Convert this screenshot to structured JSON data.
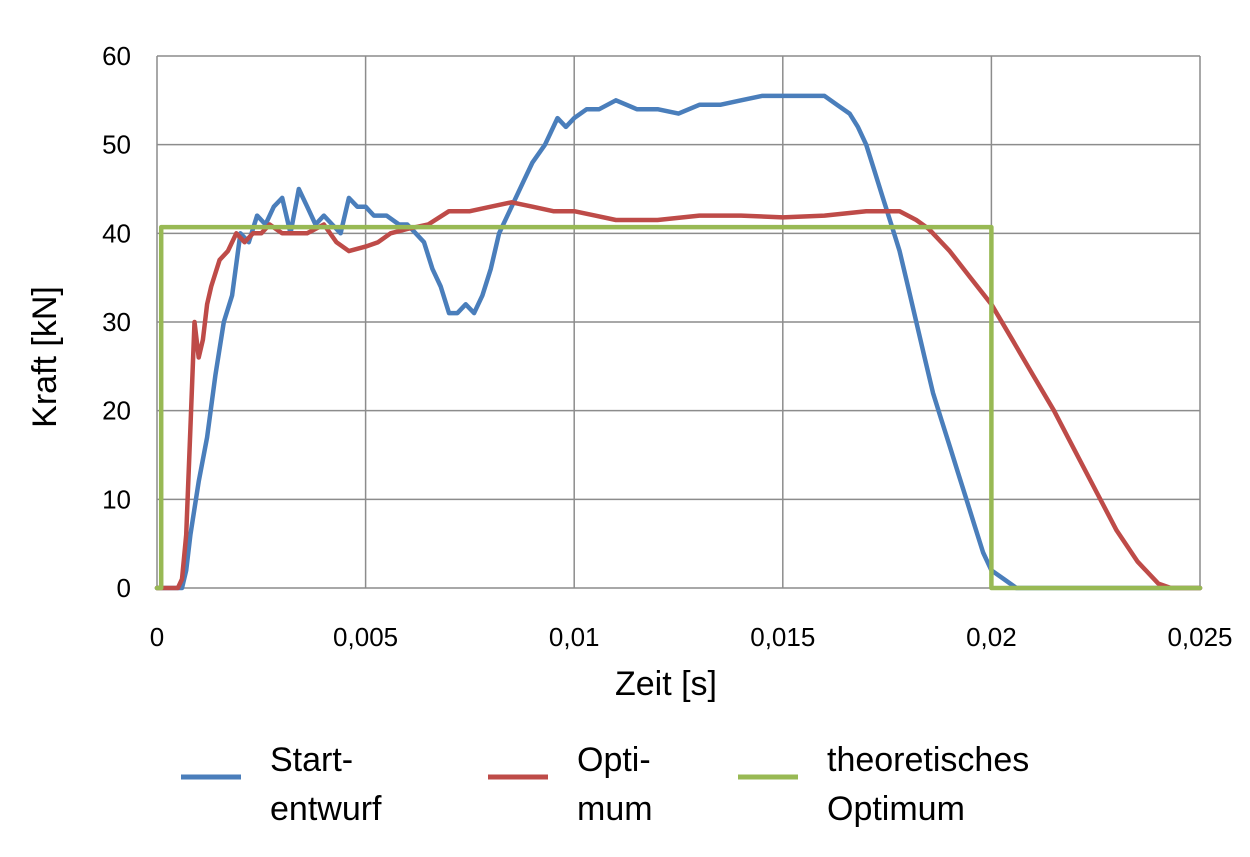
{
  "chart_data": {
    "type": "line",
    "title": "",
    "xlabel": "Zeit [s]",
    "ylabel": "Kraft [kN]",
    "xlim": [
      0,
      0.025
    ],
    "ylim": [
      0,
      60
    ],
    "x_ticks": [
      "0",
      "0,005",
      "0,01",
      "0,015",
      "0,02",
      "0,025"
    ],
    "y_ticks": [
      "0",
      "10",
      "20",
      "30",
      "40",
      "50",
      "60"
    ],
    "grid": true,
    "legend_position": "bottom",
    "series": [
      {
        "name": "Start-\nentwurf",
        "legend_lines": [
          "Start-",
          "entwurf"
        ],
        "color": "#4A7EBB",
        "x": [
          0,
          0.0006,
          0.0007,
          0.0008,
          0.001,
          0.0012,
          0.0014,
          0.0016,
          0.0018,
          0.002,
          0.0022,
          0.0024,
          0.0026,
          0.0028,
          0.003,
          0.0032,
          0.0034,
          0.0036,
          0.0038,
          0.004,
          0.0042,
          0.0044,
          0.0046,
          0.0048,
          0.005,
          0.0052,
          0.0055,
          0.0058,
          0.006,
          0.0062,
          0.0064,
          0.0066,
          0.0068,
          0.007,
          0.0072,
          0.0074,
          0.0076,
          0.0078,
          0.008,
          0.0082,
          0.0085,
          0.0088,
          0.009,
          0.0093,
          0.0096,
          0.0098,
          0.01,
          0.0103,
          0.0106,
          0.011,
          0.0115,
          0.012,
          0.0125,
          0.013,
          0.0135,
          0.014,
          0.0145,
          0.015,
          0.0155,
          0.016,
          0.0163,
          0.0166,
          0.0168,
          0.017,
          0.0172,
          0.0174,
          0.0176,
          0.0178,
          0.018,
          0.0182,
          0.0184,
          0.0186,
          0.0188,
          0.019,
          0.0192,
          0.0194,
          0.0196,
          0.0198,
          0.02,
          0.0203,
          0.0206,
          0.021,
          0.0214,
          0.0218,
          0.022,
          0.0225,
          0.023,
          0.0235,
          0.024,
          0.025
        ],
        "values": [
          0,
          0,
          2,
          6,
          12,
          17,
          24,
          30,
          33,
          40,
          39,
          42,
          41,
          43,
          44,
          40,
          45,
          43,
          41,
          42,
          41,
          40,
          44,
          43,
          43,
          42,
          42,
          41,
          41,
          40,
          39,
          36,
          34,
          31,
          31,
          32,
          31,
          33,
          36,
          40,
          43,
          46,
          48,
          50,
          53,
          52,
          53,
          54,
          54,
          55,
          54,
          54,
          53.5,
          54.5,
          54.5,
          55,
          55.5,
          55.5,
          55.5,
          55.5,
          54.5,
          53.5,
          52,
          50,
          47,
          44,
          41,
          38,
          34,
          30,
          26,
          22,
          19,
          16,
          13,
          10,
          7,
          4,
          2,
          1,
          0,
          0,
          0,
          0,
          0,
          0,
          0,
          0,
          0,
          0
        ]
      },
      {
        "name": "Opti-\nmum",
        "legend_lines": [
          "Opti-",
          "mum"
        ],
        "color": "#BE4B48",
        "x": [
          0,
          0.0005,
          0.0006,
          0.0007,
          0.0008,
          0.0009,
          0.001,
          0.0011,
          0.0012,
          0.0013,
          0.0015,
          0.0017,
          0.0019,
          0.0021,
          0.0023,
          0.0025,
          0.0027,
          0.003,
          0.0033,
          0.0036,
          0.004,
          0.0043,
          0.0046,
          0.005,
          0.0053,
          0.0056,
          0.006,
          0.0065,
          0.007,
          0.0075,
          0.008,
          0.0085,
          0.009,
          0.0095,
          0.01,
          0.0105,
          0.011,
          0.012,
          0.013,
          0.014,
          0.015,
          0.016,
          0.017,
          0.0178,
          0.0182,
          0.0185,
          0.019,
          0.0195,
          0.02,
          0.0205,
          0.021,
          0.0215,
          0.022,
          0.0225,
          0.023,
          0.0235,
          0.024,
          0.0243,
          0.0245,
          0.025
        ],
        "values": [
          0,
          0,
          1,
          6,
          18,
          30,
          26,
          28,
          32,
          34,
          37,
          38,
          40,
          39,
          40,
          40,
          41,
          40,
          40,
          40,
          41,
          39,
          38,
          38.5,
          39,
          40,
          40.5,
          41,
          42.5,
          42.5,
          43,
          43.5,
          43,
          42.5,
          42.5,
          42,
          41.5,
          41.5,
          42,
          42,
          41.8,
          42,
          42.5,
          42.5,
          41.5,
          40.5,
          38,
          35,
          32,
          28,
          24,
          20,
          15.5,
          11,
          6.5,
          3,
          0.5,
          0,
          0,
          0
        ]
      },
      {
        "name": "theoretisches\nOptimum",
        "legend_lines": [
          "theoretisches",
          "Optimum"
        ],
        "color": "#98B954",
        "x": [
          0,
          0.0001,
          0.0001,
          0.02,
          0.02,
          0.025
        ],
        "values": [
          0,
          0,
          40.7,
          40.7,
          0,
          0
        ]
      }
    ]
  }
}
